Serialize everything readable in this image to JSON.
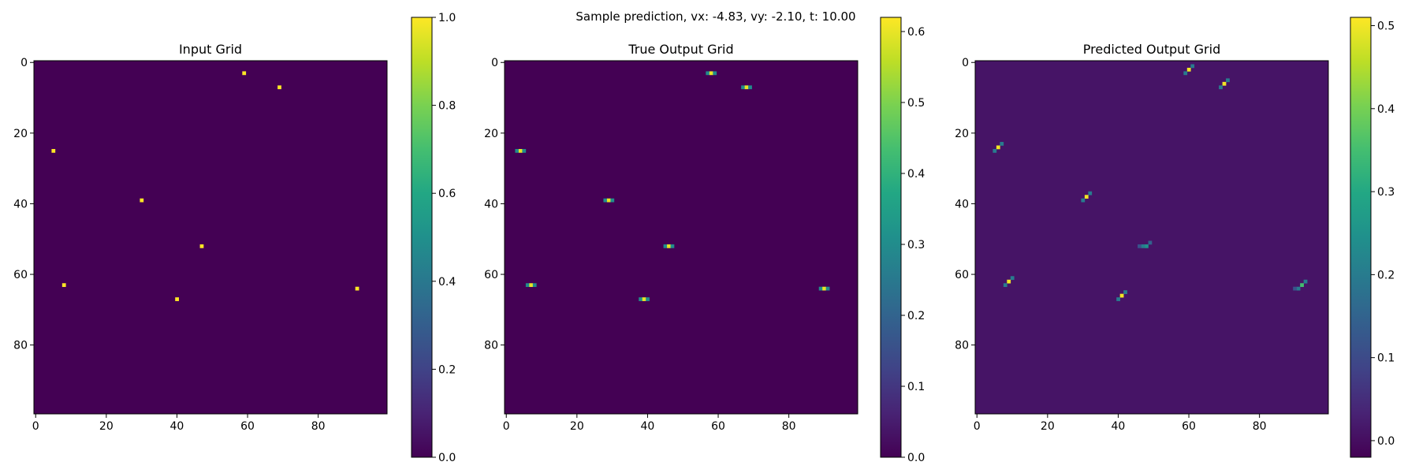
{
  "suptitle": "Sample prediction, vx: -4.83, vy: -2.10, t: 10.00",
  "chart_data": [
    {
      "type": "heatmap",
      "title": "Input Grid",
      "grid_size": 100,
      "xticks": [
        0,
        20,
        40,
        60,
        80
      ],
      "yticks": [
        0,
        20,
        40,
        60,
        80
      ],
      "colormap": "viridis",
      "colorbar": {
        "vmin": 0.0,
        "vmax": 1.0,
        "ticks": [
          "0.0",
          "0.2",
          "0.4",
          "0.6",
          "0.8",
          "1.0"
        ]
      },
      "background_value": 0.0,
      "cells": [
        {
          "x": 59,
          "y": 3,
          "v": 1.0
        },
        {
          "x": 69,
          "y": 7,
          "v": 1.0
        },
        {
          "x": 5,
          "y": 25,
          "v": 1.0
        },
        {
          "x": 30,
          "y": 39,
          "v": 1.0
        },
        {
          "x": 47,
          "y": 52,
          "v": 1.0
        },
        {
          "x": 8,
          "y": 63,
          "v": 1.0
        },
        {
          "x": 91,
          "y": 64,
          "v": 1.0
        },
        {
          "x": 40,
          "y": 67,
          "v": 1.0
        }
      ]
    },
    {
      "type": "heatmap",
      "title": "True Output Grid",
      "grid_size": 100,
      "xticks": [
        0,
        20,
        40,
        60,
        80
      ],
      "yticks": [
        0,
        20,
        40,
        60,
        80
      ],
      "colormap": "viridis",
      "colorbar": {
        "vmin": 0.0,
        "vmax": 0.62,
        "ticks": [
          "0.0",
          "0.1",
          "0.2",
          "0.3",
          "0.4",
          "0.5",
          "0.6"
        ]
      },
      "background_value": 0.0,
      "cells": [
        {
          "x": 57,
          "y": 3,
          "v": 0.3
        },
        {
          "x": 58,
          "y": 3,
          "v": 0.6
        },
        {
          "x": 59,
          "y": 3,
          "v": 0.3
        },
        {
          "x": 67,
          "y": 7,
          "v": 0.3
        },
        {
          "x": 68,
          "y": 7,
          "v": 0.6
        },
        {
          "x": 69,
          "y": 7,
          "v": 0.3
        },
        {
          "x": 3,
          "y": 25,
          "v": 0.3
        },
        {
          "x": 4,
          "y": 25,
          "v": 0.6
        },
        {
          "x": 5,
          "y": 25,
          "v": 0.3
        },
        {
          "x": 28,
          "y": 39,
          "v": 0.3
        },
        {
          "x": 29,
          "y": 39,
          "v": 0.6
        },
        {
          "x": 30,
          "y": 39,
          "v": 0.3
        },
        {
          "x": 45,
          "y": 52,
          "v": 0.3
        },
        {
          "x": 46,
          "y": 52,
          "v": 0.6
        },
        {
          "x": 47,
          "y": 52,
          "v": 0.3
        },
        {
          "x": 6,
          "y": 63,
          "v": 0.3
        },
        {
          "x": 7,
          "y": 63,
          "v": 0.6
        },
        {
          "x": 8,
          "y": 63,
          "v": 0.3
        },
        {
          "x": 89,
          "y": 64,
          "v": 0.3
        },
        {
          "x": 90,
          "y": 64,
          "v": 0.6
        },
        {
          "x": 91,
          "y": 64,
          "v": 0.3
        },
        {
          "x": 38,
          "y": 67,
          "v": 0.3
        },
        {
          "x": 39,
          "y": 67,
          "v": 0.6
        },
        {
          "x": 40,
          "y": 67,
          "v": 0.3
        }
      ]
    },
    {
      "type": "heatmap",
      "title": "Predicted Output Grid",
      "grid_size": 100,
      "xticks": [
        0,
        20,
        40,
        60,
        80
      ],
      "yticks": [
        0,
        20,
        40,
        60,
        80
      ],
      "colormap": "viridis",
      "colorbar": {
        "vmin": -0.02,
        "vmax": 0.51,
        "ticks": [
          "0.0",
          "0.1",
          "0.2",
          "0.3",
          "0.4",
          "0.5"
        ]
      },
      "background_value": 0.01,
      "cells": [
        {
          "x": 61,
          "y": 1,
          "v": 0.2
        },
        {
          "x": 60,
          "y": 2,
          "v": 0.5
        },
        {
          "x": 59,
          "y": 3,
          "v": 0.2
        },
        {
          "x": 71,
          "y": 5,
          "v": 0.2
        },
        {
          "x": 70,
          "y": 6,
          "v": 0.5
        },
        {
          "x": 69,
          "y": 7,
          "v": 0.2
        },
        {
          "x": 7,
          "y": 23,
          "v": 0.2
        },
        {
          "x": 6,
          "y": 24,
          "v": 0.5
        },
        {
          "x": 5,
          "y": 25,
          "v": 0.2
        },
        {
          "x": 32,
          "y": 37,
          "v": 0.2
        },
        {
          "x": 31,
          "y": 38,
          "v": 0.5
        },
        {
          "x": 30,
          "y": 39,
          "v": 0.2
        },
        {
          "x": 49,
          "y": 51,
          "v": 0.15
        },
        {
          "x": 48,
          "y": 52,
          "v": 0.25
        },
        {
          "x": 47,
          "y": 52,
          "v": 0.2
        },
        {
          "x": 46,
          "y": 52,
          "v": 0.12
        },
        {
          "x": 10,
          "y": 61,
          "v": 0.2
        },
        {
          "x": 9,
          "y": 62,
          "v": 0.5
        },
        {
          "x": 8,
          "y": 63,
          "v": 0.2
        },
        {
          "x": 93,
          "y": 62,
          "v": 0.2
        },
        {
          "x": 92,
          "y": 63,
          "v": 0.35
        },
        {
          "x": 91,
          "y": 64,
          "v": 0.2
        },
        {
          "x": 90,
          "y": 64,
          "v": 0.12
        },
        {
          "x": 42,
          "y": 65,
          "v": 0.2
        },
        {
          "x": 41,
          "y": 66,
          "v": 0.5
        },
        {
          "x": 40,
          "y": 67,
          "v": 0.2
        }
      ]
    }
  ]
}
